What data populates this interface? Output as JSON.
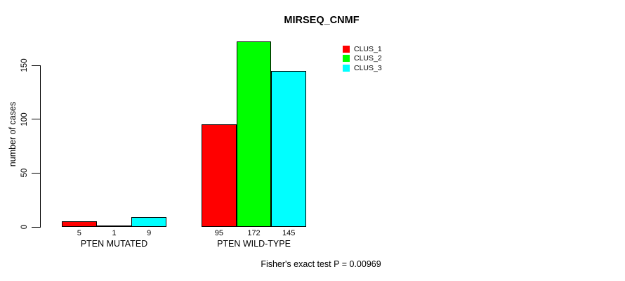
{
  "title": "MIRSEQ_CNMF",
  "caption": "Fisher's exact test P = 0.00969",
  "y_axis": {
    "label": "number of cases",
    "ticks": [
      0,
      50,
      100,
      150
    ]
  },
  "legend": [
    {
      "label": "CLUS_1",
      "color": "#ff0000"
    },
    {
      "label": "CLUS_2",
      "color": "#00ff00"
    },
    {
      "label": "CLUS_3",
      "color": "#00ffff"
    }
  ],
  "chart_data": {
    "type": "bar",
    "title": "MIRSEQ_CNMF",
    "xlabel": "",
    "ylabel": "number of cases",
    "ylim": [
      0,
      172
    ],
    "axis_ticks": [
      0,
      50,
      100,
      150
    ],
    "grid": false,
    "legend_position": "top-right",
    "categories": [
      "PTEN MUTATED",
      "PTEN WILD-TYPE"
    ],
    "series": [
      {
        "name": "CLUS_1",
        "color": "#ff0000",
        "values": [
          5,
          95
        ]
      },
      {
        "name": "CLUS_2",
        "color": "#00ff00",
        "values": [
          1,
          172
        ]
      },
      {
        "name": "CLUS_3",
        "color": "#00ffff",
        "values": [
          9,
          145
        ]
      }
    ],
    "bar_labels": [
      [
        "5",
        "1",
        "9"
      ],
      [
        "95",
        "172",
        "145"
      ]
    ],
    "annotation": "Fisher's exact test P = 0.00969"
  }
}
